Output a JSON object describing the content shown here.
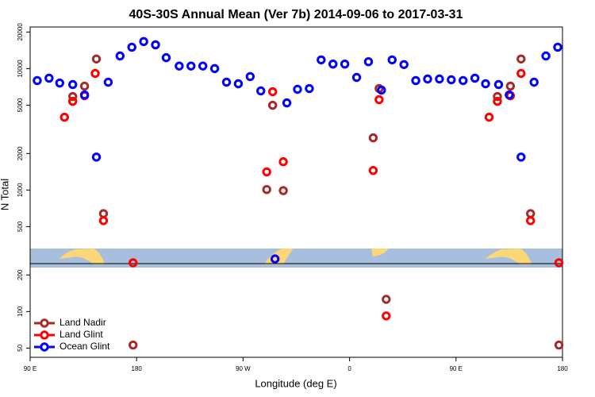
{
  "chart_data": {
    "type": "scatter",
    "title": "40S-30S Annual Mean (Ver 7b)   2014-09-06 to 2017-03-31",
    "x_label": "Longitude (deg E)",
    "y_label": "N Total",
    "log_y": true,
    "legend": "bottom-left",
    "xlim": [
      90,
      540
    ],
    "ylim": [
      42,
      22000
    ],
    "xticks": [
      {
        "value": 90,
        "label": "90 E"
      },
      180,
      {
        "value": 270,
        "label": "90 W"
      },
      {
        "value": 360,
        "label": "0"
      },
      {
        "value": 450,
        "label": "90 E"
      },
      {
        "value": 540,
        "label": "180"
      }
    ],
    "yticks": [
      50,
      100,
      200,
      500,
      1000,
      2000,
      5000,
      10000,
      20000
    ],
    "series": [
      {
        "name": "Land Nadir",
        "color": "#a52a2a",
        "x": [
          126,
          136,
          146,
          152,
          177,
          290,
          295,
          304,
          380,
          385,
          391,
          485,
          496,
          505,
          513,
          537
        ],
        "values": [
          5890,
          7170,
          12000,
          640,
          53,
          1010,
          4990,
          990,
          2690,
          6850,
          126,
          5890,
          7170,
          12000,
          640,
          53
        ]
      },
      {
        "name": "Land Glint",
        "color": "#ff0000",
        "x": [
          119,
          126,
          136,
          145,
          152,
          177,
          290,
          295,
          304,
          380,
          385,
          391,
          478,
          485,
          496,
          505,
          513,
          537
        ],
        "values": [
          3980,
          5380,
          5980,
          9120,
          560,
          252,
          1410,
          6450,
          1710,
          1450,
          5550,
          92,
          3980,
          5380,
          5980,
          9120,
          560,
          252
        ]
      },
      {
        "name": "Ocean Glint",
        "color": "#0000ff",
        "x": [
          96,
          106,
          115,
          126,
          136,
          146,
          156,
          166,
          176,
          186,
          196,
          205,
          216,
          226,
          236,
          246,
          256,
          266,
          276,
          285,
          297,
          307,
          316,
          326,
          336,
          346,
          356,
          366,
          376,
          387,
          396,
          406,
          416,
          426,
          436,
          446,
          456,
          466,
          475,
          486,
          495,
          505,
          516,
          526,
          536
        ],
        "values": [
          7970,
          8340,
          7610,
          7390,
          6070,
          1870,
          7730,
          12700,
          15000,
          16700,
          15700,
          12300,
          10500,
          10500,
          10500,
          10000,
          7730,
          7500,
          8600,
          6550,
          271,
          5220,
          6750,
          6850,
          11800,
          10900,
          10900,
          8460,
          11400,
          6650,
          11800,
          10800,
          7970,
          8210,
          8210,
          8090,
          7970,
          8340,
          7500,
          7390,
          6070,
          1870,
          7730,
          12700,
          15000
        ]
      }
    ]
  }
}
